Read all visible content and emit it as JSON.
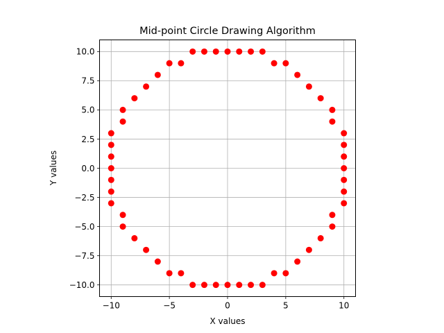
{
  "chart_data": {
    "type": "scatter",
    "title": "Mid-point Circle Drawing Algorithm",
    "xlabel": "X values",
    "ylabel": "Y values",
    "xlim": [
      -11,
      11
    ],
    "ylim": [
      -11,
      11
    ],
    "grid": true,
    "xticks": [
      -10,
      -5,
      0,
      5,
      10
    ],
    "xtick_labels": [
      "−10",
      "−5",
      "0",
      "5",
      "10"
    ],
    "yticks": [
      -10,
      -7.5,
      -5,
      -2.5,
      0,
      2.5,
      5,
      7.5,
      10
    ],
    "ytick_labels": [
      "−10.0",
      "−7.5",
      "−5.0",
      "−2.5",
      "0.0",
      "2.5",
      "5.0",
      "7.5",
      "10.0"
    ],
    "point_color": "#ff0000",
    "series": [
      {
        "points": [
          [
            -3,
            10
          ],
          [
            -2,
            10
          ],
          [
            -1,
            10
          ],
          [
            0,
            10
          ],
          [
            1,
            10
          ],
          [
            2,
            10
          ],
          [
            3,
            10
          ],
          [
            -5,
            9
          ],
          [
            -4,
            9
          ],
          [
            4,
            9
          ],
          [
            5,
            9
          ],
          [
            -6,
            8
          ],
          [
            6,
            8
          ],
          [
            -7,
            7
          ],
          [
            7,
            7
          ],
          [
            -8,
            6
          ],
          [
            8,
            6
          ],
          [
            -9,
            5
          ],
          [
            9,
            5
          ],
          [
            -9,
            4
          ],
          [
            9,
            4
          ],
          [
            -10,
            3
          ],
          [
            10,
            3
          ],
          [
            -10,
            2
          ],
          [
            10,
            2
          ],
          [
            -10,
            1
          ],
          [
            10,
            1
          ],
          [
            -10,
            0
          ],
          [
            10,
            0
          ],
          [
            -10,
            -1
          ],
          [
            10,
            -1
          ],
          [
            -10,
            -2
          ],
          [
            10,
            -2
          ],
          [
            -10,
            -3
          ],
          [
            10,
            -3
          ],
          [
            -9,
            -4
          ],
          [
            9,
            -4
          ],
          [
            -9,
            -5
          ],
          [
            9,
            -5
          ],
          [
            -8,
            -6
          ],
          [
            8,
            -6
          ],
          [
            -7,
            -7
          ],
          [
            7,
            -7
          ],
          [
            -6,
            -8
          ],
          [
            6,
            -8
          ],
          [
            -5,
            -9
          ],
          [
            -4,
            -9
          ],
          [
            4,
            -9
          ],
          [
            5,
            -9
          ],
          [
            -3,
            -10
          ],
          [
            -2,
            -10
          ],
          [
            -1,
            -10
          ],
          [
            0,
            -10
          ],
          [
            1,
            -10
          ],
          [
            2,
            -10
          ],
          [
            3,
            -10
          ]
        ]
      }
    ]
  }
}
